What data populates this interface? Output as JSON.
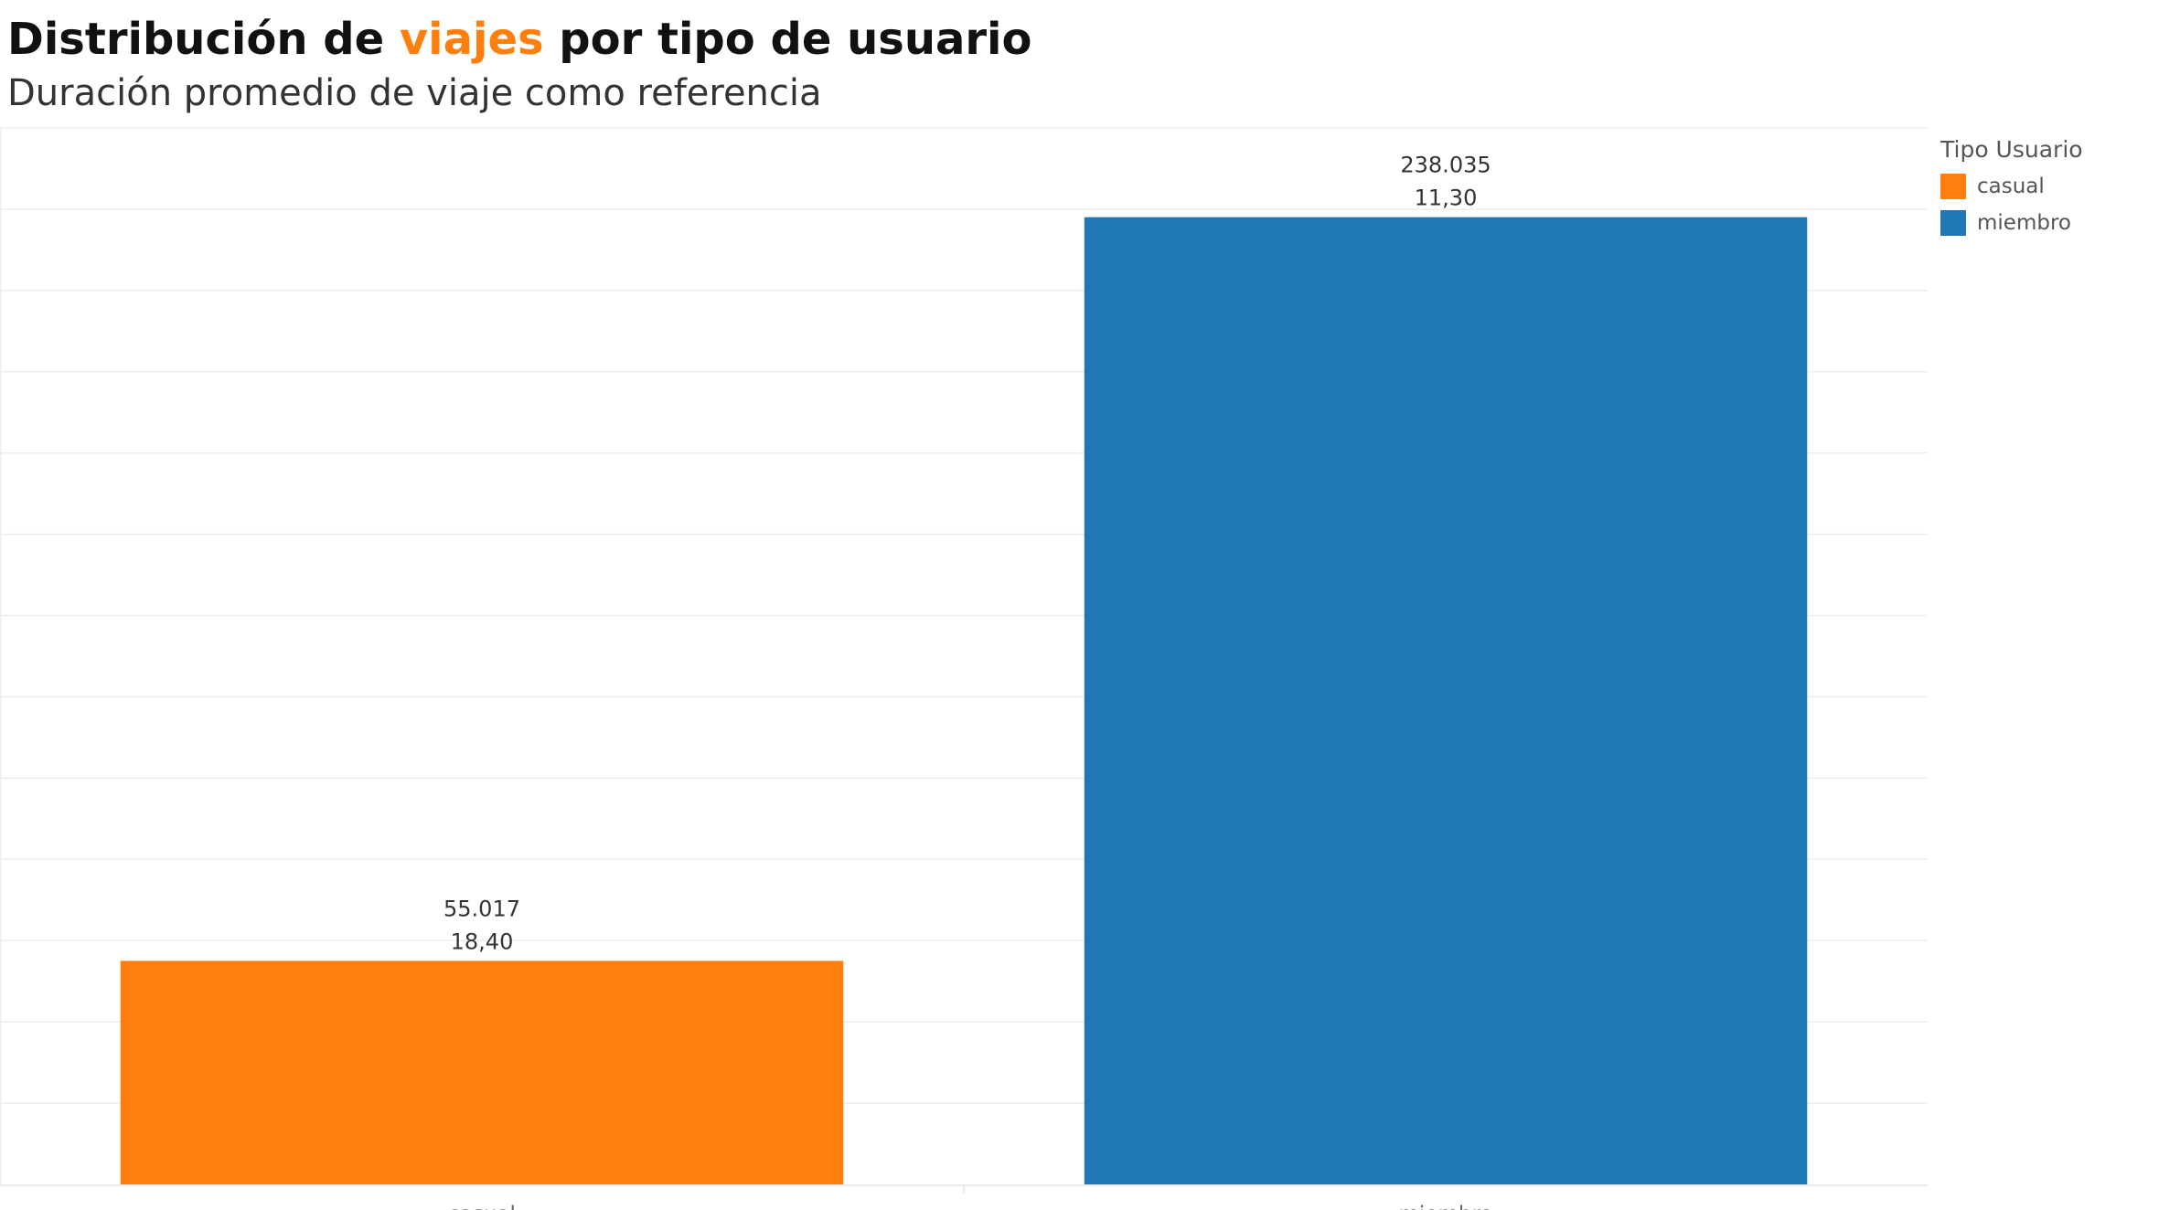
{
  "title": {
    "part1": "Distribución de ",
    "highlight": "viajes",
    "part2": " por tipo de usuario",
    "highlight_color": "#ff7f0e"
  },
  "subtitle": "Duración promedio de viaje como referencia",
  "legend": {
    "title": "Tipo Usuario",
    "items": [
      {
        "label": "casual",
        "color": "#ff7f0e"
      },
      {
        "label": "miembro",
        "color": "#1f77b4"
      }
    ]
  },
  "chart_data": {
    "type": "bar",
    "categories": [
      "casual",
      "miembro"
    ],
    "values": [
      55017,
      238035
    ],
    "value_labels": [
      "55.017",
      "238.035"
    ],
    "secondary_labels": [
      "18,40",
      "11,30"
    ],
    "colors": [
      "#ff7f0e",
      "#1f77b4"
    ],
    "ylim": [
      0,
      260000
    ],
    "gridline_step": 20000,
    "grid": true,
    "legend_position": "top-right"
  }
}
